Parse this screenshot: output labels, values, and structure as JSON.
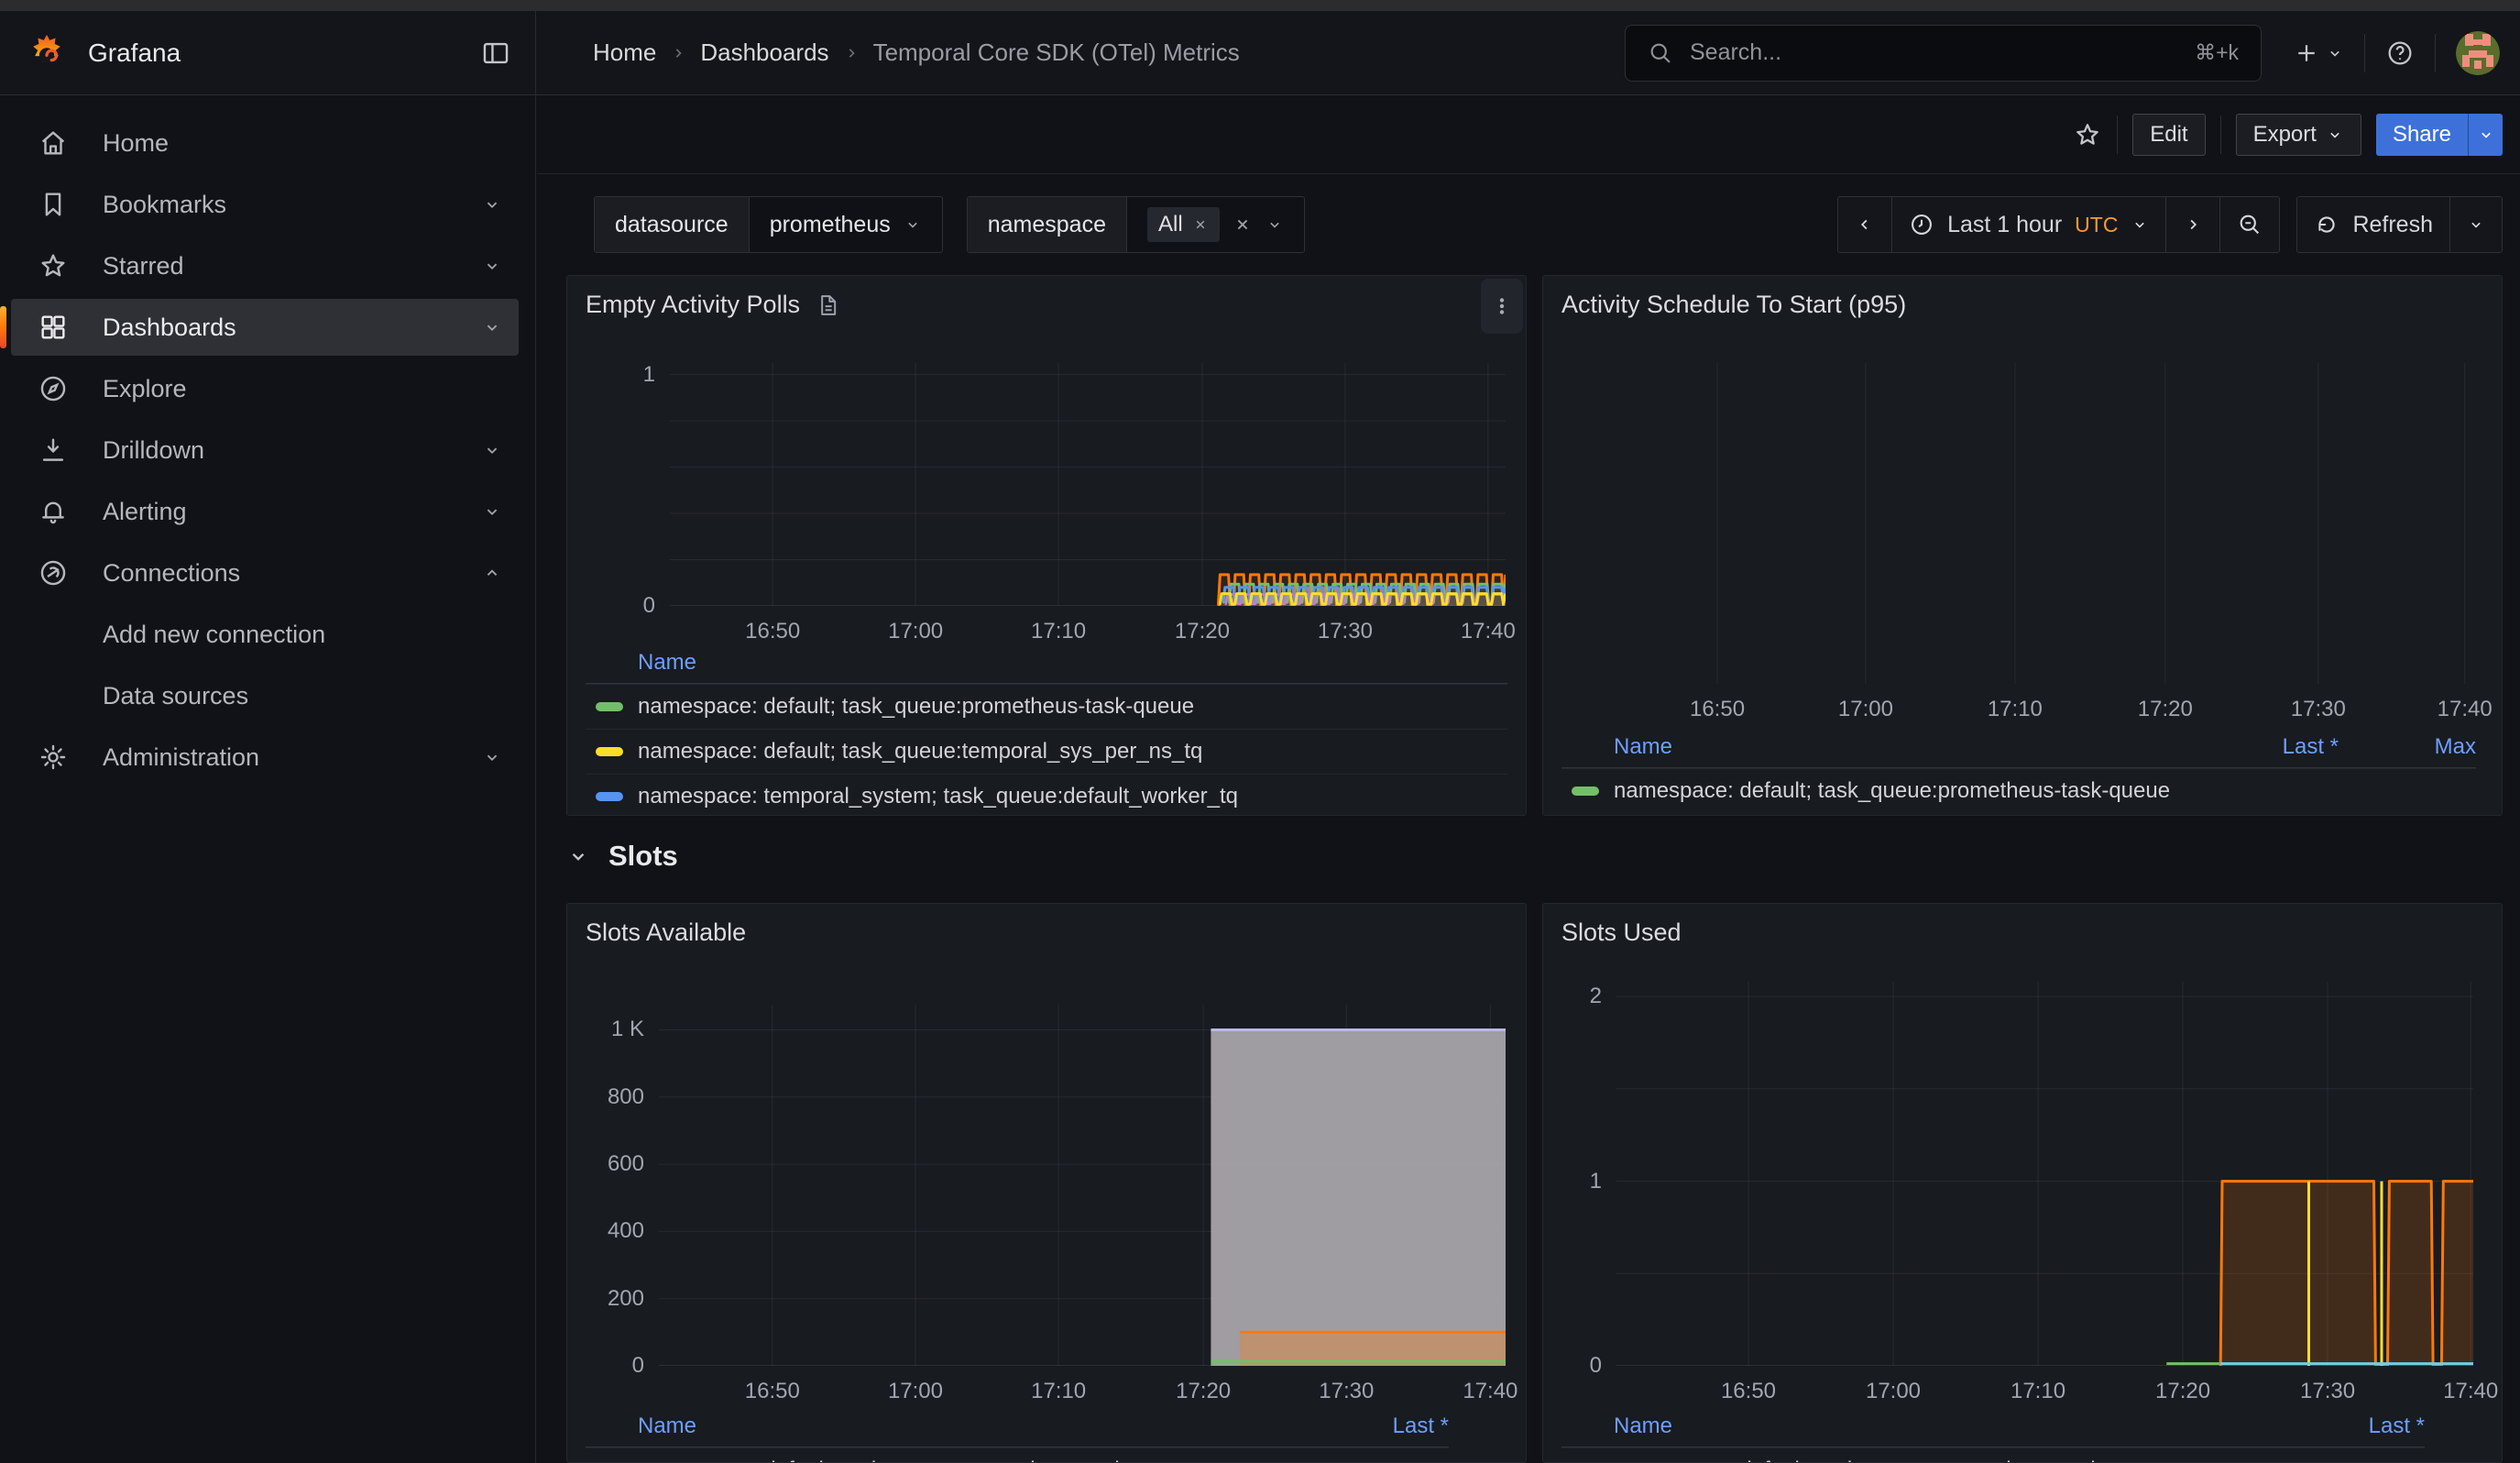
{
  "header": {
    "brand": "Grafana",
    "breadcrumbs": [
      "Home",
      "Dashboards",
      "Temporal Core SDK (OTel) Metrics"
    ],
    "search": {
      "placeholder": "Search...",
      "shortcut": "⌘+k"
    }
  },
  "sidebar": {
    "items": [
      {
        "label": "Home"
      },
      {
        "label": "Bookmarks"
      },
      {
        "label": "Starred"
      },
      {
        "label": "Dashboards",
        "active": true
      },
      {
        "label": "Explore"
      },
      {
        "label": "Drilldown"
      },
      {
        "label": "Alerting"
      },
      {
        "label": "Connections"
      },
      {
        "label": "Add new connection"
      },
      {
        "label": "Data sources"
      },
      {
        "label": "Administration"
      }
    ]
  },
  "toolbar": {
    "edit": "Edit",
    "export": "Export",
    "share": "Share"
  },
  "filters": {
    "datasource_label": "datasource",
    "datasource_value": "prometheus",
    "namespace_label": "namespace",
    "namespace_chip": "All"
  },
  "timebar": {
    "range": "Last 1 hour",
    "tz": "UTC",
    "refresh": "Refresh"
  },
  "section": {
    "title": "Slots"
  },
  "colors": {
    "primary_blue": "#3d71d9",
    "legend_link_blue": "#6e9fff",
    "utc_orange": "#ff9830",
    "series_green": "#73bf69",
    "series_yellow": "#fade2a",
    "series_blue": "#5794f2",
    "series_orange": "#ff780a",
    "series_purple": "#b877d9",
    "series_cyan": "#6ed0e0",
    "series_gray": "#a7a4aa"
  },
  "chart_data": [
    {
      "key": "empty_activity_polls",
      "type": "line",
      "title": "Empty Activity Polls",
      "xlabel": "",
      "ylabel": "",
      "ylim": [
        0,
        1.05
      ],
      "y_ticks": [
        {
          "v": 0,
          "label": "0"
        },
        {
          "v": 1,
          "label": "1"
        }
      ],
      "y_grid": [
        0,
        0.2,
        0.4,
        0.6,
        0.8,
        1
      ],
      "x_grid": true,
      "x_ticks": [
        {
          "f": 0.123,
          "label": "16:50"
        },
        {
          "f": 0.294,
          "label": "17:00"
        },
        {
          "f": 0.465,
          "label": "17:10"
        },
        {
          "f": 0.637,
          "label": "17:20"
        },
        {
          "f": 0.808,
          "label": "17:30"
        },
        {
          "f": 0.979,
          "label": "17:40"
        }
      ],
      "series": [
        {
          "kind": "square",
          "color": "#ff780a",
          "start": 0.655,
          "end": 1,
          "cycles": 19,
          "high": 0.135,
          "low": 0.004,
          "fill": 0.1,
          "w": 3
        },
        {
          "kind": "square",
          "color": "#73bf69",
          "start": 0.668,
          "end": 1,
          "cycles": 19,
          "high": 0.094,
          "low": 0.016,
          "fill": 0.1,
          "w": 3
        },
        {
          "kind": "square",
          "color": "#5794f2",
          "start": 0.661,
          "end": 1,
          "cycles": 19,
          "high": 0.08,
          "low": 0.016,
          "fill": 0.1,
          "w": 3
        },
        {
          "kind": "square",
          "color": "#b877d9",
          "start": 0.664,
          "end": 1,
          "cycles": 19,
          "high": 0.05,
          "low": 0.01,
          "fill": 0.1,
          "w": 3
        },
        {
          "kind": "square",
          "color": "#fade2a",
          "start": 0.657,
          "end": 1,
          "cycles": 19,
          "high": 0.053,
          "low": 0.008,
          "fill": 0.1,
          "w": 3
        }
      ],
      "legend": {
        "cols": [
          "Name"
        ],
        "rows": [
          {
            "color": "#73bf69",
            "label": "namespace: default; task_queue:prometheus-task-queue"
          },
          {
            "color": "#fade2a",
            "label": "namespace: default; task_queue:temporal_sys_per_ns_tq"
          },
          {
            "color": "#5794f2",
            "label": "namespace: temporal_system; task_queue:default_worker_tq"
          }
        ]
      }
    },
    {
      "key": "activity_schedule_to_start_p95",
      "type": "line",
      "title": "Activity Schedule To Start (p95)",
      "xlabel": "",
      "ylabel": "",
      "ylim": [
        0,
        1
      ],
      "y_ticks": [],
      "y_grid": [],
      "x_grid": true,
      "x_ticks": [
        {
          "f": 0.168,
          "label": "16:50"
        },
        {
          "f": 0.328,
          "label": "17:00"
        },
        {
          "f": 0.489,
          "label": "17:10"
        },
        {
          "f": 0.651,
          "label": "17:20"
        },
        {
          "f": 0.816,
          "label": "17:30"
        },
        {
          "f": 0.974,
          "label": "17:40"
        }
      ],
      "series": [],
      "legend": {
        "cols": [
          "Name",
          "Last *",
          "Max"
        ],
        "rows": [
          {
            "color": "#73bf69",
            "label": "namespace: default; task_queue:prometheus-task-queue"
          }
        ]
      }
    },
    {
      "key": "slots_available",
      "type": "area",
      "title": "Slots Available",
      "xlabel": "",
      "ylabel": "",
      "ylim": [
        0,
        1075
      ],
      "y_ticks": [
        {
          "v": 0,
          "label": "0"
        },
        {
          "v": 200,
          "label": "200"
        },
        {
          "v": 400,
          "label": "400"
        },
        {
          "v": 600,
          "label": "600"
        },
        {
          "v": 800,
          "label": "800"
        },
        {
          "v": 1000,
          "label": "1 K"
        }
      ],
      "y_grid": [
        0,
        200,
        400,
        600,
        800,
        1000
      ],
      "x_grid": true,
      "x_ticks": [
        {
          "f": 0.134,
          "label": "16:50"
        },
        {
          "f": 0.303,
          "label": "17:00"
        },
        {
          "f": 0.472,
          "label": "17:10"
        },
        {
          "f": 0.643,
          "label": "17:20"
        },
        {
          "f": 0.812,
          "label": "17:30"
        },
        {
          "f": 0.982,
          "label": "17:40"
        }
      ],
      "series": [
        {
          "kind": "hline",
          "color": "#b9b8e8",
          "y": 1000,
          "start": 0.652,
          "end": 1,
          "fill": 0.95,
          "fillcolor": "#a7a4aa",
          "w": 3
        },
        {
          "kind": "hline",
          "color": "#ff780a",
          "y": 100,
          "start": 0.686,
          "end": 1,
          "fill": 0.32,
          "w": 3
        },
        {
          "kind": "hline",
          "color": "#73bf69",
          "y": 14,
          "start": 0.652,
          "end": 1,
          "fill": 0.3,
          "w": 3
        }
      ],
      "legend": {
        "cols": [
          "Name",
          "Last *"
        ],
        "rows": [
          {
            "color": "#73bf69",
            "label": "namespace: default; task_queue:prometheus-task-queue"
          }
        ]
      }
    },
    {
      "key": "slots_used",
      "type": "line",
      "title": "Slots Used",
      "xlabel": "",
      "ylabel": "",
      "ylim": [
        0,
        2.08
      ],
      "y_ticks": [
        {
          "v": 0,
          "label": "0"
        },
        {
          "v": 1,
          "label": "1"
        },
        {
          "v": 2,
          "label": "2"
        }
      ],
      "y_grid": [
        0,
        0.5,
        1,
        1.5,
        2
      ],
      "x_grid": true,
      "x_ticks": [
        {
          "f": 0.154,
          "label": "16:50"
        },
        {
          "f": 0.323,
          "label": "17:00"
        },
        {
          "f": 0.492,
          "label": "17:10"
        },
        {
          "f": 0.661,
          "label": "17:20"
        },
        {
          "f": 0.83,
          "label": "17:30"
        },
        {
          "f": 0.997,
          "label": "17:40"
        }
      ],
      "series": [
        {
          "kind": "hline",
          "color": "#73bf69",
          "y": 0.012,
          "start": 0.642,
          "end": 0.705,
          "w": 3
        },
        {
          "kind": "pulse",
          "color": "#ff780a",
          "y": 1,
          "start": 0.705,
          "end": 1,
          "dips": [
            [
              0.884,
              0.9
            ],
            [
              0.951,
              0.963
            ]
          ],
          "fill": 0.18,
          "w": 3
        },
        {
          "kind": "vline",
          "color": "#fade2a",
          "xs": [
            0.808,
            0.893
          ],
          "y1": 0,
          "y2": 1,
          "w": 3
        },
        {
          "kind": "hline",
          "color": "#6ed0e0",
          "y": 0.012,
          "start": 0.705,
          "end": 1,
          "w": 3
        }
      ],
      "legend": {
        "cols": [
          "Name",
          "Last *"
        ],
        "rows": [
          {
            "color": "#73bf69",
            "label": "namespace: default; task_queue:prometheus-task-queue"
          }
        ]
      }
    }
  ]
}
